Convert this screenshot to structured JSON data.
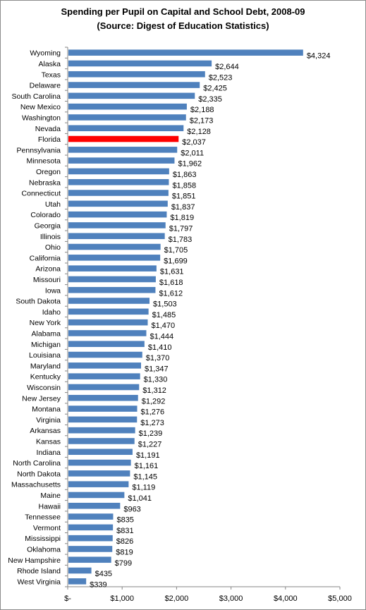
{
  "chart_data": {
    "type": "bar",
    "orientation": "horizontal",
    "title": "Spending per Pupil on Capital and School Debt, 2008-09",
    "subtitle": "(Source: Digest of Education Statistics)",
    "categories": [
      "Wyoming",
      "Alaska",
      "Texas",
      "Delaware",
      "South Carolina",
      "New Mexico",
      "Washington",
      "Nevada",
      "Florida",
      "Pennsylvania",
      "Minnesota",
      "Oregon",
      "Nebraska",
      "Connecticut",
      "Utah",
      "Colorado",
      "Georgia",
      "Illinois",
      "Ohio",
      "California",
      "Arizona",
      "Missouri",
      "Iowa",
      "South Dakota",
      "Idaho",
      "New York",
      "Alabama",
      "Michigan",
      "Louisiana",
      "Maryland",
      "Kentucky",
      "Wisconsin",
      "New Jersey",
      "Montana",
      "Virginia",
      "Arkansas",
      "Kansas",
      "Indiana",
      "North Carolina",
      "North Dakota",
      "Massachusetts",
      "Maine",
      "Hawaii",
      "Tennessee",
      "Vermont",
      "Mississippi",
      "Oklahoma",
      "New Hampshire",
      "Rhode Island",
      "West Virginia"
    ],
    "values": [
      4324,
      2644,
      2523,
      2425,
      2335,
      2188,
      2173,
      2128,
      2037,
      2011,
      1962,
      1863,
      1858,
      1851,
      1837,
      1819,
      1797,
      1783,
      1705,
      1699,
      1631,
      1618,
      1612,
      1503,
      1485,
      1470,
      1444,
      1410,
      1370,
      1347,
      1330,
      1312,
      1292,
      1276,
      1273,
      1239,
      1227,
      1191,
      1161,
      1145,
      1119,
      1041,
      963,
      835,
      831,
      826,
      819,
      799,
      435,
      339
    ],
    "value_labels": [
      "$4,324",
      "$2,644",
      "$2,523",
      "$2,425",
      "$2,335",
      "$2,188",
      "$2,173",
      "$2,128",
      "$2,037",
      "$2,011",
      "$1,962",
      "$1,863",
      "$1,858",
      "$1,851",
      "$1,837",
      "$1,819",
      "$1,797",
      "$1,783",
      "$1,705",
      "$1,699",
      "$1,631",
      "$1,618",
      "$1,612",
      "$1,503",
      "$1,485",
      "$1,470",
      "$1,444",
      "$1,410",
      "$1,370",
      "$1,347",
      "$1,330",
      "$1,312",
      "$1,292",
      "$1,276",
      "$1,273",
      "$1,239",
      "$1,227",
      "$1,191",
      "$1,161",
      "$1,145",
      "$1,119",
      "$1,041",
      "$963",
      "$835",
      "$831",
      "$826",
      "$819",
      "$799",
      "$435",
      "$339"
    ],
    "highlight": "Florida",
    "xlim": [
      0,
      5000
    ],
    "xticks": [
      0,
      1000,
      2000,
      3000,
      4000,
      5000
    ],
    "xtick_labels": [
      "$-",
      "$1,000",
      "$2,000",
      "$3,000",
      "$4,000",
      "$5,000"
    ],
    "xlabel": "",
    "ylabel": "",
    "grid": false,
    "legend": "none",
    "colors": {
      "bar": "#4f81bd",
      "highlight": "#ff0000",
      "axis": "#868686"
    }
  }
}
